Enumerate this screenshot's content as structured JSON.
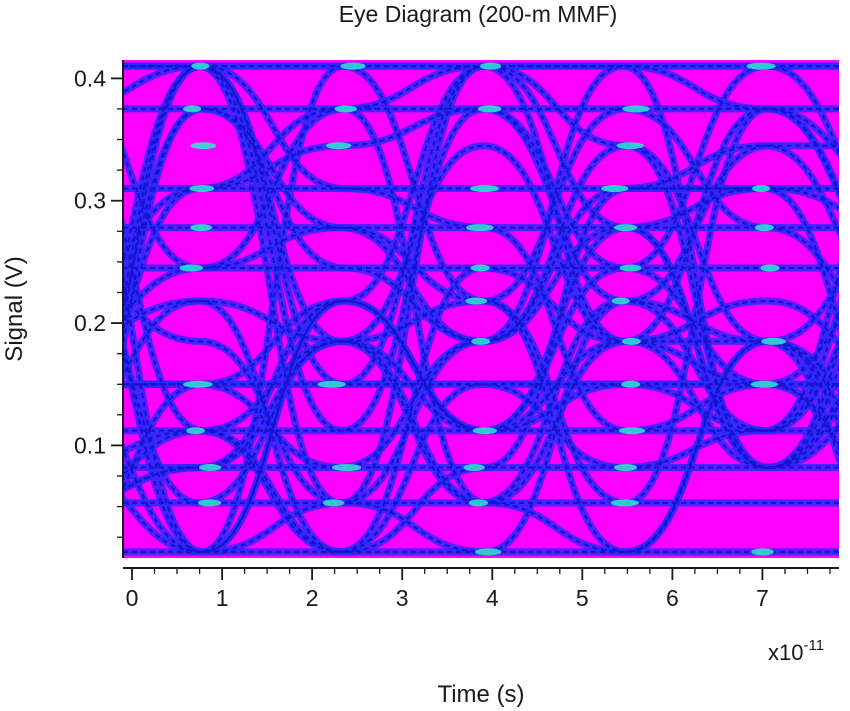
{
  "chart_data": {
    "type": "eye-diagram",
    "title": "Eye Diagram (200-m MMF)",
    "xlabel": "Time (s)",
    "ylabel": "Signal (V)",
    "x_multiplier_label": "x10",
    "x_multiplier_exponent": "-11",
    "xlim": [
      -0.1,
      7.85
    ],
    "ylim": [
      0.008,
      0.415
    ],
    "x_ticks": [
      {
        "value": 0,
        "label": "0"
      },
      {
        "value": 1,
        "label": "1"
      },
      {
        "value": 2,
        "label": "2"
      },
      {
        "value": 3,
        "label": "3"
      },
      {
        "value": 4,
        "label": "4"
      },
      {
        "value": 5,
        "label": "5"
      },
      {
        "value": 6,
        "label": "6"
      },
      {
        "value": 7,
        "label": "7"
      }
    ],
    "y_ticks": [
      {
        "value": 0.1,
        "label": "0.1"
      },
      {
        "value": 0.2,
        "label": "0.2"
      },
      {
        "value": 0.3,
        "label": "0.3"
      },
      {
        "value": 0.4,
        "label": "0.4"
      }
    ],
    "x_minor_step": 0.25,
    "y_minor_step": 0.025,
    "unit_interval": 1.57,
    "trace_start": 0.77,
    "signal_levels": [
      0.013,
      0.053,
      0.082,
      0.112,
      0.15,
      0.185,
      0.218,
      0.245,
      0.278,
      0.31,
      0.345,
      0.375,
      0.41
    ],
    "colors": {
      "background": "#ff00ff",
      "trace": "#2a28ff",
      "trace_inner": "#1a12c8",
      "hot": "#33e8d0",
      "axis": "#1a1a1a"
    }
  }
}
